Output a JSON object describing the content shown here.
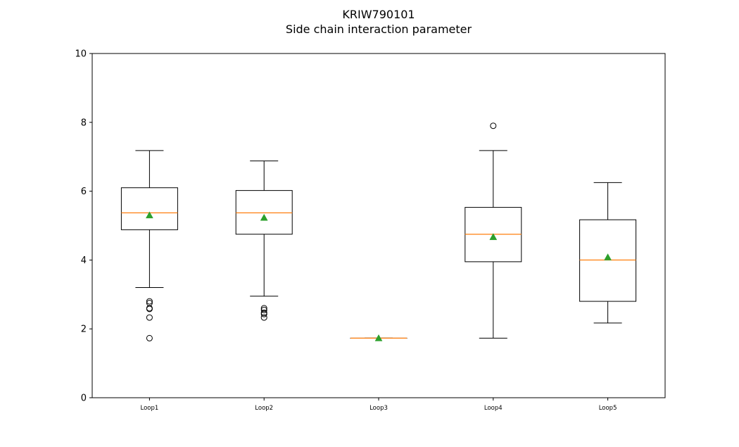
{
  "chart_data": {
    "type": "box",
    "title_lines": [
      "KRIW790101",
      "Side chain interaction parameter"
    ],
    "xlabel": "",
    "ylabel": "",
    "ylim": [
      0,
      10
    ],
    "yticks": [
      0,
      2,
      4,
      6,
      8,
      10
    ],
    "grid": false,
    "legend": "none",
    "colors": {
      "box": "#000000",
      "median": "#ff7f0e",
      "mean": "#2ca02c",
      "flier": "#000000"
    },
    "categories": [
      "Loop1",
      "Loop2",
      "Loop3",
      "Loop4",
      "Loop5"
    ],
    "boxes": [
      {
        "category": "Loop1",
        "whislo": 3.2,
        "q1": 4.88,
        "med": 5.37,
        "q3": 6.1,
        "whishi": 7.18,
        "mean": 5.3,
        "fliers": [
          2.8,
          2.75,
          2.6,
          2.58,
          2.33,
          1.73
        ]
      },
      {
        "category": "Loop2",
        "whislo": 2.95,
        "q1": 4.75,
        "med": 5.37,
        "q3": 6.02,
        "whishi": 6.88,
        "mean": 5.23,
        "fliers": [
          2.6,
          2.55,
          2.47,
          2.43,
          2.33
        ]
      },
      {
        "category": "Loop3",
        "whislo": 1.73,
        "q1": 1.73,
        "med": 1.73,
        "q3": 1.73,
        "whishi": 1.73,
        "mean": 1.73,
        "fliers": []
      },
      {
        "category": "Loop4",
        "whislo": 1.73,
        "q1": 3.95,
        "med": 4.75,
        "q3": 5.53,
        "whishi": 7.18,
        "mean": 4.67,
        "fliers": [
          7.9
        ]
      },
      {
        "category": "Loop5",
        "whislo": 2.17,
        "q1": 2.8,
        "med": 4.0,
        "q3": 5.17,
        "whishi": 6.25,
        "mean": 4.08,
        "fliers": []
      }
    ]
  }
}
